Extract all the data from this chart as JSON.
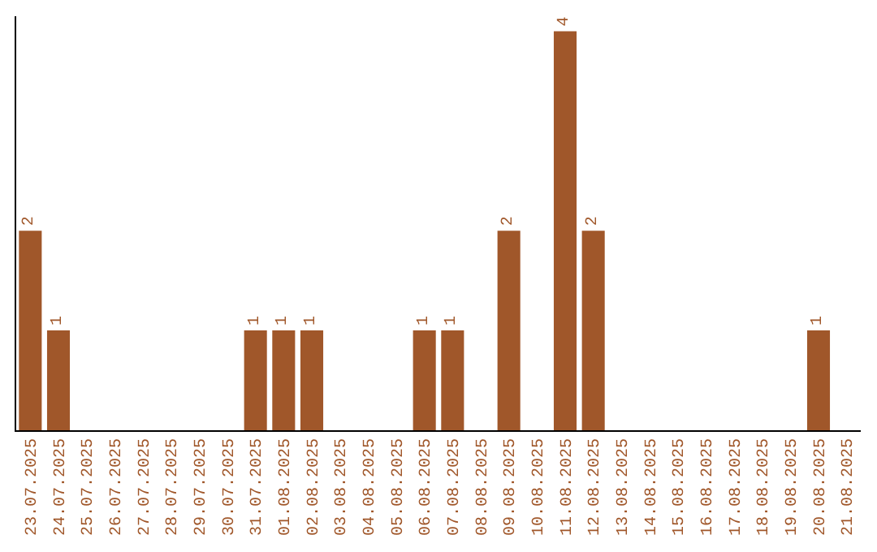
{
  "chart_data": {
    "type": "bar",
    "categories": [
      "23.07.2025",
      "24.07.2025",
      "25.07.2025",
      "26.07.2025",
      "27.07.2025",
      "28.07.2025",
      "29.07.2025",
      "30.07.2025",
      "31.07.2025",
      "01.08.2025",
      "02.08.2025",
      "03.08.2025",
      "04.08.2025",
      "05.08.2025",
      "06.08.2025",
      "07.08.2025",
      "08.08.2025",
      "09.08.2025",
      "10.08.2025",
      "11.08.2025",
      "12.08.2025",
      "13.08.2025",
      "14.08.2025",
      "15.08.2025",
      "16.08.2025",
      "17.08.2025",
      "18.08.2025",
      "19.08.2025",
      "20.08.2025",
      "21.08.2025"
    ],
    "values": [
      2,
      1,
      0,
      0,
      0,
      0,
      0,
      0,
      1,
      1,
      1,
      0,
      0,
      0,
      1,
      1,
      0,
      2,
      0,
      4,
      2,
      0,
      0,
      0,
      0,
      0,
      0,
      0,
      1,
      0
    ],
    "value_labels": [
      "2",
      "1",
      null,
      null,
      null,
      null,
      null,
      null,
      "1",
      "1",
      "1",
      null,
      null,
      null,
      "1",
      "1",
      null,
      "2",
      null,
      "4",
      "2",
      null,
      null,
      null,
      null,
      null,
      null,
      null,
      "1",
      null
    ],
    "color": "#a0572a",
    "ylim": [
      0,
      4.15
    ],
    "tick_labels": "x",
    "legend": false
  }
}
